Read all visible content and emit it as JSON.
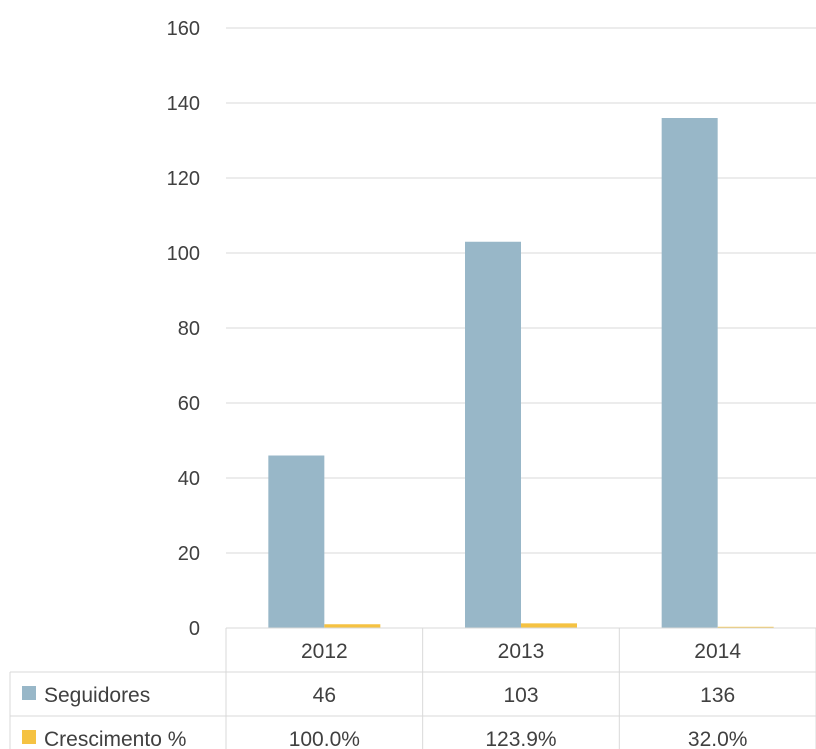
{
  "chart_data": {
    "type": "bar",
    "categories": [
      "2012",
      "2013",
      "2014"
    ],
    "series": [
      {
        "name": "Seguidores",
        "values": [
          46,
          103,
          136
        ],
        "display": [
          "46",
          "103",
          "136"
        ],
        "color": "#98b7c8"
      },
      {
        "name": "Crescimento %",
        "values": [
          1.0,
          1.239,
          0.32
        ],
        "display": [
          "100.0%",
          "123.9%",
          "32.0%"
        ],
        "color": "#f5c242"
      }
    ],
    "ylim": [
      0,
      160
    ],
    "yticks": [
      0,
      20,
      40,
      60,
      80,
      100,
      120,
      140,
      160
    ],
    "grid": true,
    "legend": "data-table",
    "title": "",
    "xlabel": "",
    "ylabel": ""
  }
}
